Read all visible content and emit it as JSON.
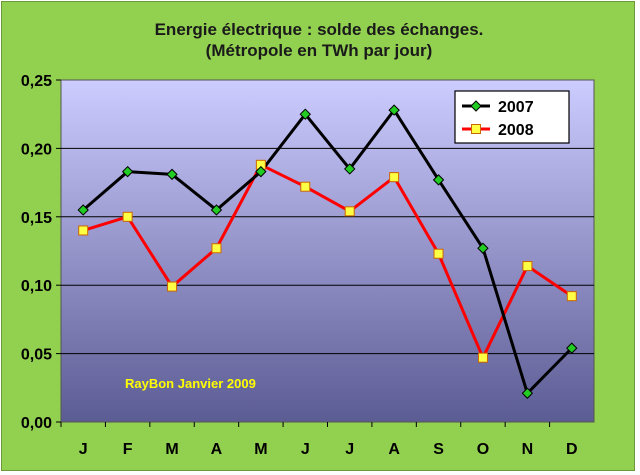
{
  "chart_data": {
    "type": "line",
    "title": "Energie électrique : solde des échanges.",
    "subtitle": "(Métropole en TWh par jour)",
    "categories": [
      "J",
      "F",
      "M",
      "A",
      "M",
      "J",
      "J",
      "A",
      "S",
      "O",
      "N",
      "D"
    ],
    "ylim": [
      0,
      0.25
    ],
    "yticks": [
      0,
      0.05,
      0.1,
      0.15,
      0.2,
      0.25
    ],
    "ytick_labels": [
      "0,00",
      "0,05",
      "0,10",
      "0,15",
      "0,20",
      "0,25"
    ],
    "grid": true,
    "legend_position": "top-right",
    "series": [
      {
        "name": "2007",
        "color": "#000000",
        "marker": "diamond",
        "marker_color": "#22cc22",
        "values": [
          0.155,
          0.183,
          0.181,
          0.155,
          0.183,
          0.225,
          0.185,
          0.228,
          0.177,
          0.127,
          0.021,
          0.054
        ]
      },
      {
        "name": "2008",
        "color": "#ff0000",
        "marker": "square",
        "marker_color": "#ffff44",
        "values": [
          0.14,
          0.15,
          0.099,
          0.127,
          0.188,
          0.172,
          0.154,
          0.179,
          0.123,
          0.047,
          0.114,
          0.092
        ]
      }
    ],
    "annotation": "RayBon  Janvier 2009"
  },
  "colors": {
    "frame_background": "#92d050",
    "plot_gradient_top": "#ccccff",
    "plot_gradient_bottom": "#5c5c94",
    "gridline": "#000000"
  }
}
